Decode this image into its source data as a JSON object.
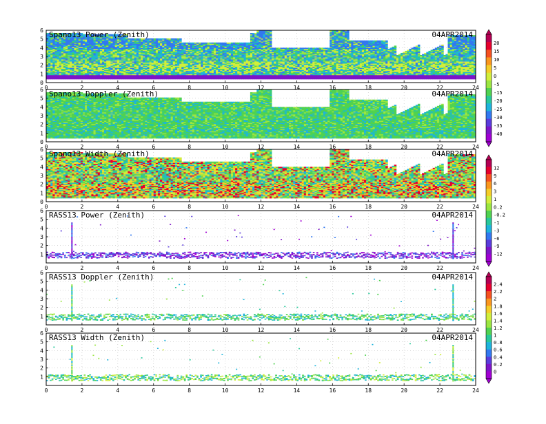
{
  "figure": {
    "date_label": "04APR2014",
    "x_ticks": [
      "0",
      "2",
      "4",
      "6",
      "8",
      "10",
      "12",
      "14",
      "16",
      "18",
      "20",
      "22",
      "24"
    ],
    "y_ticks_main": [
      "0",
      "1",
      "2",
      "3",
      "4",
      "5",
      "6"
    ],
    "y_ticks_rass": [
      "1",
      "2",
      "3",
      "4",
      "5",
      "6"
    ],
    "colorbars": [
      {
        "id": "power",
        "labels": [
          "20",
          "15",
          "10",
          "5",
          "0",
          "-5",
          "-15",
          "-20",
          "-25",
          "-30",
          "-35",
          "-40"
        ],
        "colors": [
          "#b40053",
          "#e6002d",
          "#f55020",
          "#fa961e",
          "#f5cd28",
          "#d2ee3c",
          "#9be641",
          "#50d250",
          "#28c89b",
          "#1eb4dc",
          "#3278f0",
          "#5a3cdc",
          "#7d14c8",
          "#a000d2"
        ]
      },
      {
        "id": "width",
        "labels": [
          "12",
          "9",
          "6",
          "3",
          "1",
          "0.2",
          "-0.2",
          "-1",
          "-3",
          "-6",
          "-9",
          "-12"
        ],
        "colors": [
          "#b40053",
          "#e6002d",
          "#f55020",
          "#fa961e",
          "#f5cd28",
          "#d2ee3c",
          "#9be641",
          "#50d250",
          "#28c89b",
          "#1eb4dc",
          "#3278f0",
          "#5a3cdc",
          "#7d14c8",
          "#a000d2"
        ]
      },
      {
        "id": "rass",
        "labels": [
          "2.4",
          "2.2",
          "2",
          "1.8",
          "1.6",
          "1.4",
          "1.2",
          "1",
          "0.8",
          "0.6",
          "0.4",
          "0.2",
          "0"
        ],
        "colors": [
          "#b40053",
          "#e6002d",
          "#f55020",
          "#fa961e",
          "#f5cd28",
          "#d2ee3c",
          "#9be641",
          "#50d250",
          "#28c89b",
          "#1eb4dc",
          "#3278f0",
          "#5a3cdc",
          "#7d14c8",
          "#a000d2"
        ]
      }
    ]
  },
  "chart_data": [
    {
      "type": "heatmap",
      "title": "Spano13 Power (Zenith)",
      "date": "04APR2014",
      "xlim": [
        0,
        24
      ],
      "ylim": [
        0,
        6
      ],
      "colorbar": "power",
      "palette": [
        "#1eb4dc",
        "#28c89b",
        "#50d250",
        "#9be641",
        "#1eb4dc",
        "#3278f0",
        "#d2ee3c"
      ]
    },
    {
      "type": "heatmap",
      "title": "Spano13 Doppler (Zenith)",
      "date": "04APR2014",
      "xlim": [
        0,
        24
      ],
      "ylim": [
        0,
        6
      ],
      "colorbar": "power",
      "palette": [
        "#50d250",
        "#50d250",
        "#9be641",
        "#28c89b",
        "#50d250",
        "#1eb4dc"
      ]
    },
    {
      "type": "heatmap",
      "title": "Spano13 Width (Zenith)",
      "date": "04APR2014",
      "xlim": [
        0,
        24
      ],
      "ylim": [
        0,
        6
      ],
      "colorbar": "width",
      "palette": [
        "#50d250",
        "#9be641",
        "#28c89b",
        "#1eb4dc",
        "#d2ee3c",
        "#f5cd28",
        "#e6002d"
      ]
    },
    {
      "type": "heatmap",
      "title": "RASS13 Power (Zenith)",
      "date": "04APR2014",
      "xlim": [
        0,
        24
      ],
      "ylim": [
        0,
        6
      ],
      "colorbar": "width",
      "palette": [
        "#7d14c8",
        "#5a3cdc",
        "#a000d2",
        "#3278f0"
      ]
    },
    {
      "type": "heatmap",
      "title": "RASS13 Doppler (Zenith)",
      "date": "04APR2014",
      "xlim": [
        0,
        24
      ],
      "ylim": [
        0,
        6
      ],
      "colorbar": "rass",
      "palette": [
        "#50d250",
        "#9be641",
        "#28c89b",
        "#1eb4dc"
      ]
    },
    {
      "type": "heatmap",
      "title": "RASS13 Width (Zenith)",
      "date": "04APR2014",
      "xlim": [
        0,
        24
      ],
      "ylim": [
        0,
        6
      ],
      "colorbar": "rass",
      "palette": [
        "#50d250",
        "#9be641",
        "#28c89b",
        "#1eb4dc",
        "#d2ee3c"
      ]
    }
  ]
}
